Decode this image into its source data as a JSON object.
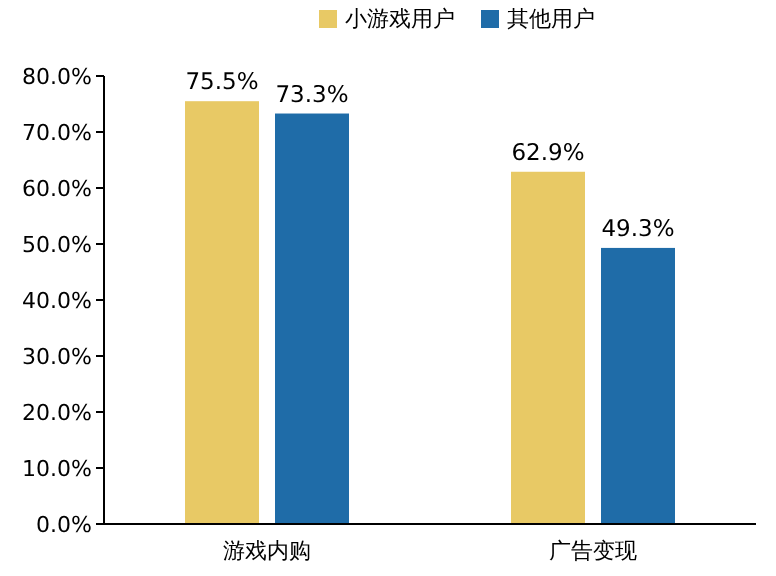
{
  "chart_data": {
    "type": "bar",
    "categories": [
      "游戏内购",
      "广告变现"
    ],
    "series": [
      {
        "name": "小游戏用户",
        "color": "#e8c965",
        "values": [
          75.5,
          62.9
        ],
        "value_labels": [
          "75.5%",
          "62.9%"
        ]
      },
      {
        "name": "其他用户",
        "color": "#1f6ca8",
        "values": [
          73.3,
          49.3
        ],
        "value_labels": [
          "73.3%",
          "49.3%"
        ]
      }
    ],
    "ylim": [
      0,
      80
    ],
    "yticks": [
      {
        "value": 0,
        "label": "0.0%"
      },
      {
        "value": 10,
        "label": "10.0%"
      },
      {
        "value": 20,
        "label": "20.0%"
      },
      {
        "value": 30,
        "label": "30.0%"
      },
      {
        "value": 40,
        "label": "40.0%"
      },
      {
        "value": 50,
        "label": "50.0%"
      },
      {
        "value": 60,
        "label": "60.0%"
      },
      {
        "value": 70,
        "label": "70.0%"
      },
      {
        "value": 80,
        "label": "80.0%"
      }
    ],
    "legend": "top",
    "grid": false
  }
}
